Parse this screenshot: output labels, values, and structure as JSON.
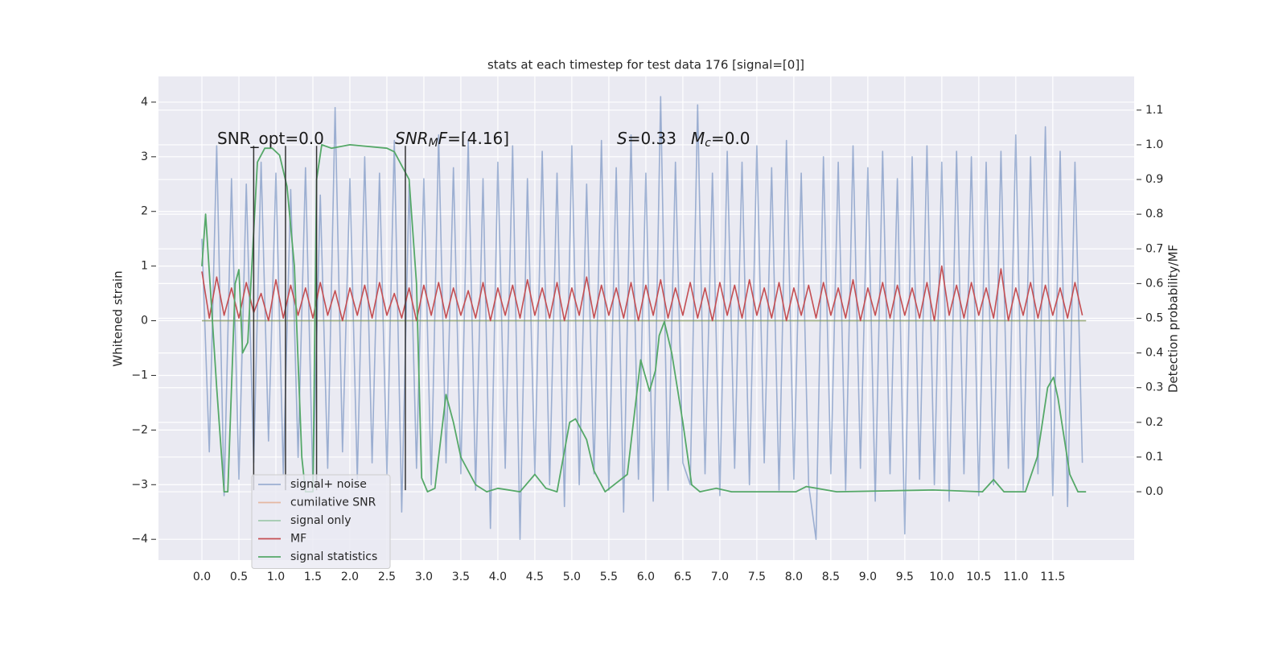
{
  "chart_data": {
    "type": "line",
    "title": "stats at each timestep for test data 176 [signal=[0]]",
    "ylabel": "Whitened strain",
    "y2label": "Detection probability/MF",
    "xlim": [
      -0.587,
      12.6
    ],
    "ylim": [
      -4.38,
      4.47
    ],
    "y2lim": [
      -0.197,
      1.197
    ],
    "grid": true,
    "xticks": [
      {
        "value": 0,
        "label": "0.0"
      },
      0.5,
      {
        "value": 1,
        "label": "1.0"
      },
      1.5,
      {
        "value": 2,
        "label": "2.0"
      },
      2.5,
      {
        "value": 3,
        "label": "3.0"
      },
      3.5,
      {
        "value": 4,
        "label": "4.0"
      },
      4.5,
      {
        "value": 5,
        "label": "5.0"
      },
      5.5,
      {
        "value": 6,
        "label": "6.0"
      },
      6.5,
      {
        "value": 7,
        "label": "7.0"
      },
      7.5,
      {
        "value": 8,
        "label": "8.0"
      },
      8.5,
      {
        "value": 9,
        "label": "9.0"
      },
      9.5,
      {
        "value": 10,
        "label": "10.0"
      },
      10.5,
      {
        "value": 11,
        "label": "11.0"
      },
      11.5
    ],
    "yticks": [
      {
        "value": -4,
        "label": "−4"
      },
      {
        "value": -3,
        "label": "−3"
      },
      {
        "value": -2,
        "label": "−2"
      },
      {
        "value": -1,
        "label": "−1"
      },
      0,
      1,
      2,
      3,
      4
    ],
    "y2ticks": [
      {
        "value": 0,
        "label": "0.0"
      },
      0.1,
      0.2,
      0.3,
      0.4,
      0.5,
      0.6,
      0.7,
      0.8,
      0.9,
      {
        "value": 1,
        "label": "1.0"
      },
      1.1
    ],
    "series": [
      {
        "name": "signal+ noise",
        "color": "#4c72b0",
        "alpha": 0.5,
        "x": [
          0,
          0.1,
          0.2,
          0.3,
          0.4,
          0.5,
          0.6,
          0.7,
          0.8,
          0.9,
          1,
          1.1,
          1.2,
          1.3,
          1.4,
          1.5,
          1.6,
          1.7,
          1.8,
          1.9,
          2,
          2.1,
          2.2,
          2.3,
          2.4,
          2.5,
          2.6,
          2.7,
          2.8,
          2.9,
          3,
          3.1,
          3.2,
          3.3,
          3.4,
          3.5,
          3.6,
          3.7,
          3.8,
          3.9,
          4,
          4.1,
          4.2,
          4.3,
          4.4,
          4.5,
          4.6,
          4.7,
          4.8,
          4.9,
          5,
          5.1,
          5.2,
          5.3,
          5.4,
          5.5,
          5.6,
          5.7,
          5.8,
          5.9,
          6,
          6.1,
          6.2,
          6.3,
          6.4,
          6.5,
          6.6,
          6.7,
          6.8,
          6.9,
          7,
          7.1,
          7.2,
          7.3,
          7.4,
          7.5,
          7.6,
          7.7,
          7.8,
          7.9,
          8,
          8.1,
          8.2,
          8.3,
          8.4,
          8.5,
          8.6,
          8.7,
          8.8,
          8.9,
          9,
          9.1,
          9.2,
          9.3,
          9.4,
          9.5,
          9.6,
          9.7,
          9.8,
          9.9,
          10,
          10.1,
          10.2,
          10.3,
          10.4,
          10.5,
          10.6,
          10.7,
          10.8,
          10.9,
          11,
          11.1,
          11.2,
          11.3,
          11.4,
          11.5,
          11.6,
          11.7,
          11.8,
          11.9
        ],
        "values": [
          1.5,
          -2.4,
          3.2,
          -3.2,
          2.6,
          -2.9,
          2.5,
          -2.6,
          2.9,
          -2.2,
          2.7,
          -2.8,
          2.4,
          -2.5,
          2.8,
          -3.0,
          2.3,
          -2.7,
          3.9,
          -2.4,
          2.6,
          -2.9,
          3.0,
          -2.6,
          2.7,
          -2.8,
          3.3,
          -3.5,
          2.5,
          -2.7,
          2.6,
          -3.0,
          3.4,
          -2.6,
          2.8,
          -2.8,
          3.3,
          -3.1,
          2.6,
          -3.8,
          2.9,
          -2.7,
          3.2,
          -4.0,
          2.6,
          -2.8,
          3.1,
          -3.0,
          2.7,
          -3.4,
          3.2,
          -3.0,
          2.5,
          -2.8,
          3.3,
          -3.1,
          2.8,
          -3.5,
          3.4,
          -2.9,
          2.7,
          -3.3,
          4.1,
          -3.1,
          2.9,
          -2.6,
          -3.0,
          3.95,
          -2.8,
          2.7,
          -3.2,
          3.1,
          -2.7,
          2.9,
          -3.0,
          3.2,
          -2.6,
          2.8,
          -3.1,
          3.3,
          -2.9,
          2.7,
          -3.0,
          -4.0,
          3.0,
          -2.8,
          2.9,
          -3.1,
          3.2,
          -2.7,
          2.8,
          -3.3,
          3.1,
          -2.8,
          2.6,
          -3.9,
          3.0,
          -2.9,
          3.2,
          -3.0,
          2.9,
          -3.3,
          3.1,
          -2.8,
          3.0,
          -3.2,
          2.9,
          -3.0,
          3.1,
          -2.7,
          3.4,
          -3.1,
          3.0,
          -2.8,
          3.55,
          -3.2,
          3.1,
          -3.4,
          2.9,
          -2.6
        ]
      },
      {
        "name": "cumilative SNR",
        "color": "#dd8452",
        "alpha": 0.5,
        "x": [
          0,
          11.95
        ],
        "values": [
          0,
          0
        ]
      },
      {
        "name": "signal only",
        "color": "#55a868",
        "alpha": 0.5,
        "x": [
          0,
          11.95
        ],
        "values": [
          0,
          0
        ]
      },
      {
        "name": "MF",
        "color": "#c44e52",
        "alpha": 1,
        "x": [
          0,
          0.1,
          0.2,
          0.3,
          0.4,
          0.5,
          0.6,
          0.7,
          0.8,
          0.9,
          1,
          1.1,
          1.2,
          1.3,
          1.4,
          1.5,
          1.6,
          1.7,
          1.8,
          1.9,
          2,
          2.1,
          2.2,
          2.3,
          2.4,
          2.5,
          2.6,
          2.7,
          2.8,
          2.9,
          3,
          3.1,
          3.2,
          3.3,
          3.4,
          3.5,
          3.6,
          3.7,
          3.8,
          3.9,
          4,
          4.1,
          4.2,
          4.3,
          4.4,
          4.5,
          4.6,
          4.7,
          4.8,
          4.9,
          5,
          5.1,
          5.2,
          5.3,
          5.4,
          5.5,
          5.6,
          5.7,
          5.8,
          5.9,
          6,
          6.1,
          6.2,
          6.3,
          6.4,
          6.5,
          6.6,
          6.7,
          6.8,
          6.9,
          7,
          7.1,
          7.2,
          7.3,
          7.4,
          7.5,
          7.6,
          7.7,
          7.8,
          7.9,
          8,
          8.1,
          8.2,
          8.3,
          8.4,
          8.5,
          8.6,
          8.7,
          8.8,
          8.9,
          9,
          9.1,
          9.2,
          9.3,
          9.4,
          9.5,
          9.6,
          9.7,
          9.8,
          9.9,
          10,
          10.1,
          10.2,
          10.3,
          10.4,
          10.5,
          10.6,
          10.7,
          10.8,
          10.9,
          11,
          11.1,
          11.2,
          11.3,
          11.4,
          11.5,
          11.6,
          11.7,
          11.8,
          11.9
        ],
        "values": [
          0.9,
          0.05,
          0.8,
          0.1,
          0.6,
          0.05,
          0.7,
          0.15,
          0.5,
          0,
          0.75,
          0.05,
          0.65,
          0.1,
          0.6,
          0.05,
          0.7,
          0.1,
          0.55,
          0,
          0.6,
          0.1,
          0.65,
          0.05,
          0.7,
          0.1,
          0.5,
          0.05,
          0.6,
          0,
          0.65,
          0.1,
          0.7,
          0.05,
          0.6,
          0.1,
          0.55,
          0.05,
          0.7,
          0,
          0.6,
          0.1,
          0.65,
          0.05,
          0.75,
          0.1,
          0.6,
          0.05,
          0.7,
          0,
          0.6,
          0.1,
          0.8,
          0.05,
          0.65,
          0.1,
          0.6,
          0.05,
          0.7,
          0,
          0.65,
          0.1,
          0.75,
          0.05,
          0.6,
          0.1,
          0.7,
          0.05,
          0.6,
          0,
          0.7,
          0.1,
          0.65,
          0.05,
          0.75,
          0.1,
          0.6,
          0.05,
          0.7,
          0,
          0.6,
          0.1,
          0.65,
          0.05,
          0.7,
          0.1,
          0.6,
          0.05,
          0.75,
          0,
          0.6,
          0.1,
          0.7,
          0.05,
          0.65,
          0.1,
          0.6,
          0.05,
          0.7,
          0,
          1.0,
          0.1,
          0.65,
          0.05,
          0.7,
          0.1,
          0.6,
          0.05,
          0.95,
          0,
          0.6,
          0.1,
          0.7,
          0.05,
          0.65,
          0.1,
          0.6,
          0.05,
          0.7,
          0.1
        ]
      },
      {
        "name": "signal statistics",
        "color": "#55a868",
        "alpha": 1,
        "axis": "y2",
        "x": [
          0,
          0.05,
          0.2,
          0.3,
          0.35,
          0.45,
          0.5,
          0.55,
          0.62,
          0.75,
          0.85,
          0.95,
          1.05,
          1.15,
          1.25,
          1.35,
          1.4,
          1.5,
          1.55,
          1.62,
          1.75,
          2.0,
          2.5,
          2.6,
          2.8,
          2.9,
          2.97,
          3.05,
          3.15,
          3.3,
          3.4,
          3.5,
          3.7,
          3.85,
          4.0,
          4.3,
          4.5,
          4.65,
          4.8,
          4.97,
          5.05,
          5.2,
          5.3,
          5.45,
          5.75,
          5.93,
          6.05,
          6.13,
          6.18,
          6.25,
          6.35,
          6.5,
          6.62,
          6.73,
          6.95,
          7.16,
          8.03,
          8.17,
          8.58,
          9.88,
          10.55,
          10.7,
          10.84,
          11.13,
          11.29,
          11.43,
          11.51,
          11.57,
          11.73,
          11.84,
          11.95
        ],
        "values": [
          0.65,
          0.8,
          0.3,
          0,
          0,
          0.6,
          0.64,
          0.4,
          0.43,
          0.95,
          0.99,
          0.99,
          0.97,
          0.88,
          0.65,
          0.1,
          0,
          0,
          0.9,
          1.0,
          0.99,
          1.0,
          0.99,
          0.98,
          0.9,
          0.6,
          0.04,
          0,
          0.01,
          0.28,
          0.2,
          0.1,
          0.02,
          0,
          0.01,
          0,
          0.05,
          0.01,
          0,
          0.2,
          0.21,
          0.15,
          0.06,
          0,
          0.05,
          0.38,
          0.29,
          0.35,
          0.45,
          0.49,
          0.4,
          0.2,
          0.02,
          0,
          0.01,
          0,
          0,
          0.015,
          0,
          0.005,
          0,
          0.035,
          0,
          0,
          0.1,
          0.3,
          0.33,
          0.27,
          0.05,
          0,
          0
        ]
      }
    ],
    "vlines": {
      "x": [
        0.7,
        1.13,
        1.55,
        2.75
      ],
      "ymin": -3.1,
      "ymax": 3.2,
      "color": "#333333"
    },
    "annotations": [
      [
        {
          "text": "SNR_opt=0.0",
          "style": "normal"
        }
      ],
      [
        {
          "text": "SNR",
          "style": "italic"
        },
        {
          "text": "M",
          "style": "sub"
        },
        {
          "text": "F",
          "style": "italic"
        },
        {
          "text": "=[4.16]",
          "style": "normal"
        }
      ],
      [
        {
          "text": "S",
          "style": "italic"
        },
        {
          "text": "=0.33",
          "style": "normal"
        }
      ],
      [
        {
          "text": "M",
          "style": "italic"
        },
        {
          "text": "c",
          "style": "sub"
        },
        {
          "text": "=0.0",
          "style": "normal"
        }
      ]
    ],
    "legend": "lower left"
  }
}
